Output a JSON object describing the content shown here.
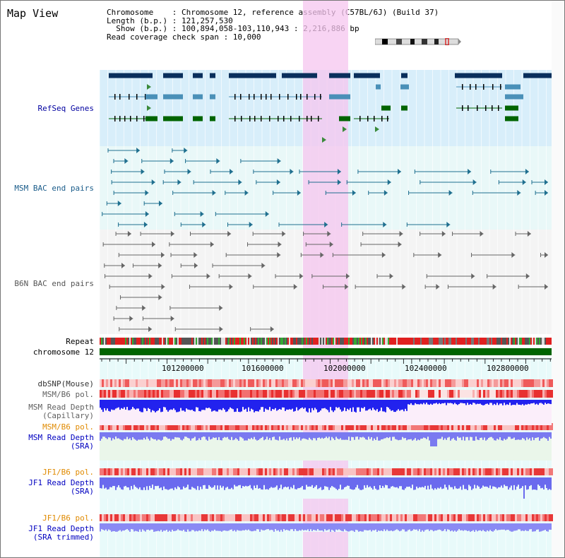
{
  "page_title": "Map View",
  "info": {
    "chromosome": "Chromosome    : Chromosome 12, reference assembly (C57BL/6J) (Build 37)",
    "length": "Length (b.p.) : 121,257,530",
    "show": "  Show (b.p.) : 100,894,058-103,110,943 : 2,216,886 bp",
    "coverage": "Read coverage check span : 10,000"
  },
  "tracks": {
    "refseq": "RefSeq Genes",
    "msm_bac": "MSM BAC end pairs",
    "b6n_bac": "B6N BAC end pairs",
    "repeat": "Repeat",
    "chrom": "chromosome 12",
    "dbsnp": "dbSNP(Mouse)",
    "msm_b6_pol_1": "MSM/B6 pol.",
    "msm_depth_cap_1": "MSM Read Depth",
    "msm_depth_cap_2": "(Capillary)",
    "msm_b6_pol_2": "MSM/B6 pol.",
    "msm_depth_sra_1": "MSM Read Depth",
    "msm_depth_sra_2": "(SRA)",
    "jf1_b6_pol_1": "JF1/B6 pol.",
    "jf1_depth_sra_1": "JF1 Read Depth",
    "jf1_depth_sra_2": "(SRA)",
    "jf1_b6_pol_2": "JF1/B6 pol.",
    "jf1_depth_trim_1": "JF1 Read Depth",
    "jf1_depth_trim_2": "(SRA trimmed)"
  },
  "axis": {
    "ticks": [
      "101200000",
      "101600000",
      "102000000",
      "102400000",
      "102800000"
    ]
  },
  "colors": {
    "refseq_label": "#0000a0",
    "msm_label": "#1a5c8a",
    "b6n_label": "#555555",
    "msm_pol_label": "#606060",
    "sra_pol_label": "#e08a00",
    "depth_label": "#0000c0",
    "highlight": "#f5c6ef",
    "chrom_bar": "#006400"
  }
}
